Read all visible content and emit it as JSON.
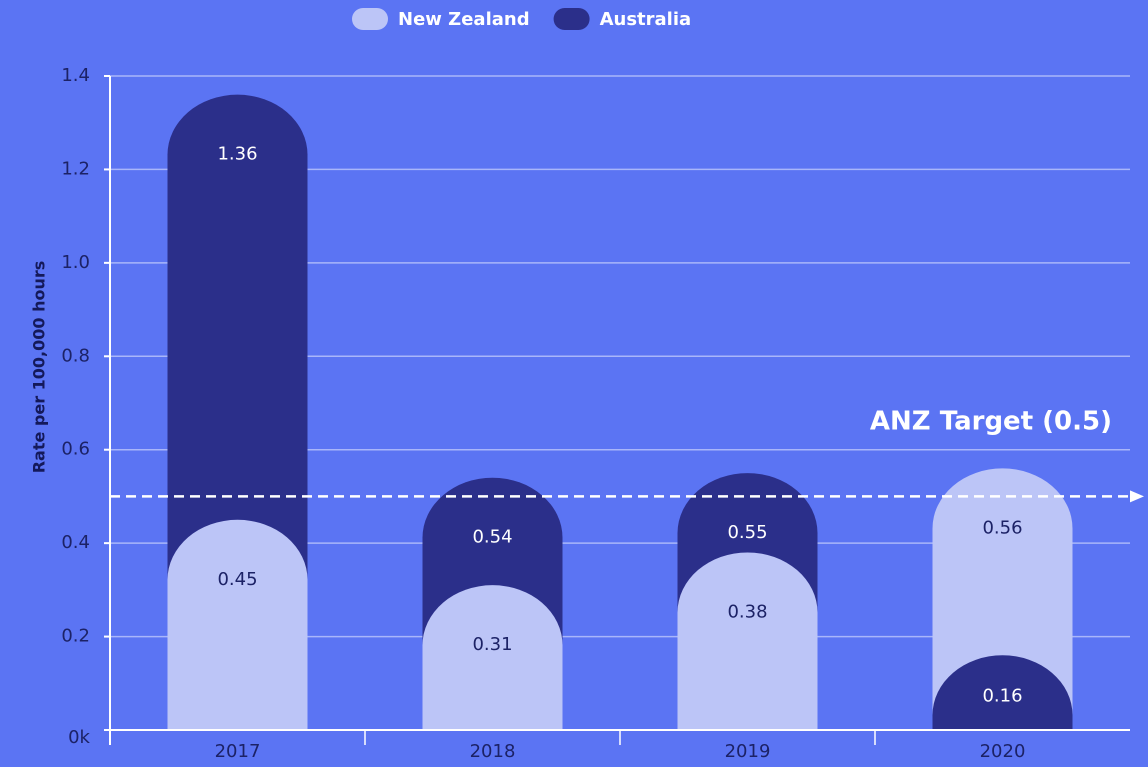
{
  "chart_data": {
    "type": "bar",
    "y_axis_label": "Rate per 100,000 hours",
    "categories": [
      "2017",
      "2018",
      "2019",
      "2020"
    ],
    "series": [
      {
        "name": "New Zealand",
        "color": "#bcc5f7",
        "values": [
          0.45,
          0.31,
          0.38,
          0.56
        ]
      },
      {
        "name": "Australia",
        "color": "#2b2f8a",
        "values": [
          1.36,
          0.54,
          0.55,
          0.16
        ]
      }
    ],
    "ylim": [
      0,
      1.4
    ],
    "yticks": [
      {
        "value": 0,
        "label": "0k"
      },
      0.2,
      0.4,
      0.6,
      0.8,
      {
        "value": 1,
        "label": "1.0"
      },
      1.2,
      1.4
    ],
    "grid": true,
    "target": {
      "value": 0.5,
      "label": "ANZ Target (0.5)"
    },
    "legend": "top"
  }
}
